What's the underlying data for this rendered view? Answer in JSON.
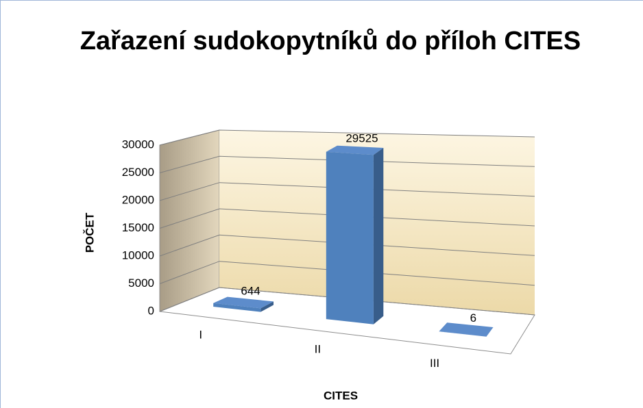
{
  "chart_data": {
    "type": "bar3d",
    "title": "Zařazení sudokopytníků do příloh CITES",
    "xlabel": "CITES",
    "ylabel": "POČET",
    "categories": [
      "I",
      "II",
      "III"
    ],
    "values": [
      644,
      29525,
      6
    ],
    "color": "#4f81bd",
    "ylim": [
      0,
      30000
    ],
    "yticks": [
      0,
      5000,
      10000,
      15000,
      20000,
      25000,
      30000
    ],
    "grid": true
  }
}
